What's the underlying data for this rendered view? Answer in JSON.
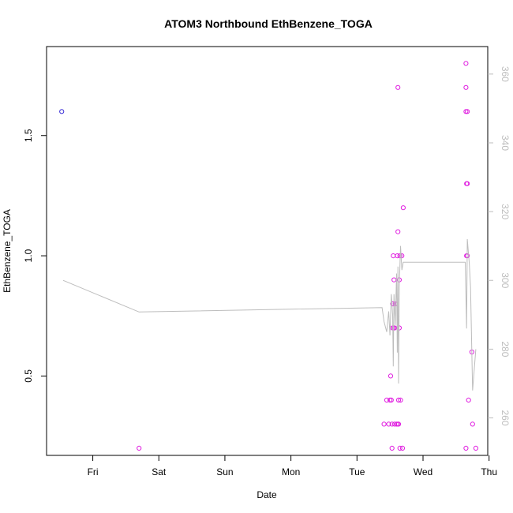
{
  "chart_data": {
    "type": "scatter",
    "title": "ATOM3 Northbound EthBenzene_TOGA",
    "xlabel": "Date",
    "ylabel": "EthBenzene_TOGA",
    "x_ticks": [
      "Fri",
      "Sat",
      "Sun",
      "Mon",
      "Tue",
      "Wed",
      "Thu"
    ],
    "x_range_days": [
      -0.7,
      5.98
    ],
    "y_left_ticks": [
      "0.5",
      "1.0",
      "1.5"
    ],
    "y_left_lim": [
      0.17,
      1.87
    ],
    "y_right_ticks": [
      "260",
      "280",
      "300",
      "320",
      "340",
      "360"
    ],
    "y_right_lim": [
      249.1,
      368.0
    ],
    "grid": false,
    "series": [
      {
        "color": "#3b2fd6",
        "points": [
          [
            -0.47,
            1.6
          ]
        ]
      },
      {
        "color": "#e020e0",
        "points": [
          [
            0.7,
            0.2
          ],
          [
            4.41,
            0.3
          ],
          [
            4.45,
            0.4
          ],
          [
            4.48,
            0.3
          ],
          [
            4.5,
            0.4
          ],
          [
            4.51,
            0.5
          ],
          [
            4.52,
            0.4
          ],
          [
            4.53,
            0.3
          ],
          [
            4.53,
            0.2
          ],
          [
            4.54,
            0.8
          ],
          [
            4.54,
            0.7
          ],
          [
            4.55,
            1.0
          ],
          [
            4.55,
            0.8
          ],
          [
            4.56,
            0.7
          ],
          [
            4.56,
            0.9
          ],
          [
            4.57,
            0.7
          ],
          [
            4.57,
            0.3
          ],
          [
            4.58,
            0.8
          ],
          [
            4.6,
            0.3
          ],
          [
            4.61,
            1.0
          ],
          [
            4.62,
            0.3
          ],
          [
            4.62,
            1.7
          ],
          [
            4.62,
            1.1
          ],
          [
            4.63,
            0.4
          ],
          [
            4.63,
            0.3
          ],
          [
            4.64,
            0.7
          ],
          [
            4.64,
            0.9
          ],
          [
            4.65,
            1.0
          ],
          [
            4.65,
            0.2
          ],
          [
            4.66,
            0.4
          ],
          [
            4.68,
            1.0
          ],
          [
            4.69,
            0.2
          ],
          [
            4.7,
            1.2
          ],
          [
            5.65,
            1.8
          ],
          [
            5.65,
            1.7
          ],
          [
            5.65,
            1.6
          ],
          [
            5.66,
            1.3
          ],
          [
            5.66,
            1.0
          ],
          [
            5.65,
            0.2
          ],
          [
            5.67,
            1.6
          ],
          [
            5.67,
            1.3
          ],
          [
            5.67,
            1.0
          ],
          [
            5.69,
            0.4
          ],
          [
            5.74,
            0.6
          ],
          [
            5.75,
            0.3
          ],
          [
            5.8,
            0.2
          ]
        ]
      },
      {
        "type": "line",
        "axis": "right",
        "color": "#bdbdbd",
        "points": [
          [
            -0.45,
            300.0
          ],
          [
            0.7,
            290.8
          ],
          [
            4.38,
            292.1
          ],
          [
            4.41,
            288.0
          ],
          [
            4.45,
            285.0
          ],
          [
            4.48,
            291.0
          ],
          [
            4.5,
            284.0
          ],
          [
            4.52,
            296.0
          ],
          [
            4.54,
            290.0
          ],
          [
            4.55,
            275.0
          ],
          [
            4.56,
            296.0
          ],
          [
            4.58,
            287.0
          ],
          [
            4.6,
            302.0
          ],
          [
            4.61,
            279.0
          ],
          [
            4.62,
            304.0
          ],
          [
            4.63,
            270.0
          ],
          [
            4.64,
            298.0
          ],
          [
            4.66,
            310.0
          ],
          [
            4.68,
            303.0
          ],
          [
            4.7,
            305.3
          ],
          [
            5.64,
            305.3
          ],
          [
            5.66,
            286.0
          ],
          [
            5.67,
            312.0
          ],
          [
            5.7,
            305.0
          ],
          [
            5.72,
            298.0
          ],
          [
            5.75,
            268.0
          ],
          [
            5.8,
            280.0
          ]
        ]
      }
    ]
  }
}
